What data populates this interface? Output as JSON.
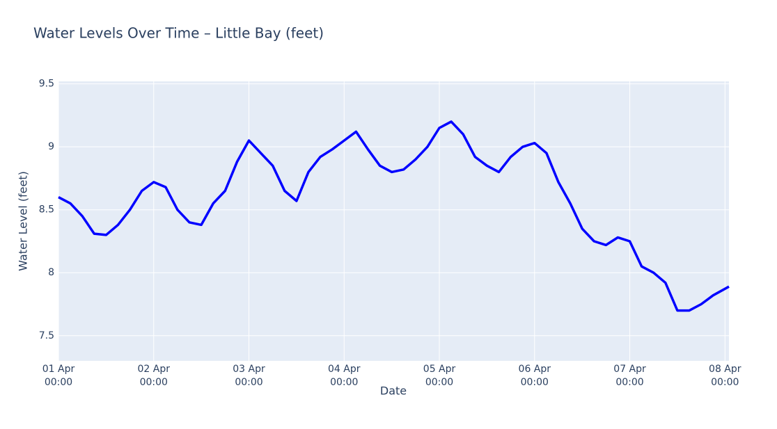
{
  "chart_data": {
    "type": "line",
    "title": "Water Levels Over Time – Little Bay (feet)",
    "x_label": "Date",
    "y_label": "Water Level (feet)",
    "x": [
      "01 Apr 00:00",
      "01 Apr 03:00",
      "01 Apr 06:00",
      "01 Apr 09:00",
      "01 Apr 12:00",
      "01 Apr 15:00",
      "01 Apr 18:00",
      "01 Apr 21:00",
      "02 Apr 00:00",
      "02 Apr 03:00",
      "02 Apr 06:00",
      "02 Apr 09:00",
      "02 Apr 12:00",
      "02 Apr 15:00",
      "02 Apr 18:00",
      "02 Apr 21:00",
      "03 Apr 00:00",
      "03 Apr 03:00",
      "03 Apr 06:00",
      "03 Apr 09:00",
      "03 Apr 12:00",
      "03 Apr 15:00",
      "03 Apr 18:00",
      "03 Apr 21:00",
      "04 Apr 00:00",
      "04 Apr 03:00",
      "04 Apr 06:00",
      "04 Apr 09:00",
      "04 Apr 12:00",
      "04 Apr 15:00",
      "04 Apr 18:00",
      "04 Apr 21:00",
      "05 Apr 00:00",
      "05 Apr 03:00",
      "05 Apr 06:00",
      "05 Apr 09:00",
      "05 Apr 12:00",
      "05 Apr 15:00",
      "05 Apr 18:00",
      "05 Apr 21:00",
      "06 Apr 00:00",
      "06 Apr 03:00",
      "06 Apr 06:00",
      "06 Apr 09:00",
      "06 Apr 12:00",
      "06 Apr 15:00",
      "06 Apr 18:00",
      "06 Apr 21:00",
      "07 Apr 00:00",
      "07 Apr 03:00",
      "07 Apr 06:00",
      "07 Apr 09:00",
      "07 Apr 12:00",
      "07 Apr 15:00",
      "07 Apr 18:00",
      "07 Apr 21:00",
      "08 Apr 01:00"
    ],
    "series": [
      {
        "name": "Water Level",
        "color": "#0000ff",
        "values": [
          8.6,
          8.55,
          8.45,
          8.31,
          8.3,
          8.38,
          8.5,
          8.65,
          8.72,
          8.68,
          8.5,
          8.4,
          8.38,
          8.55,
          8.65,
          8.88,
          9.05,
          8.95,
          8.85,
          8.65,
          8.57,
          8.8,
          8.92,
          8.98,
          9.05,
          9.12,
          8.98,
          8.85,
          8.8,
          8.82,
          8.9,
          9.0,
          9.15,
          9.2,
          9.1,
          8.92,
          8.85,
          8.8,
          8.92,
          9.0,
          9.03,
          8.95,
          8.72,
          8.55,
          8.35,
          8.25,
          8.22,
          8.28,
          8.25,
          8.05,
          8.0,
          7.92,
          7.7,
          7.7,
          7.75,
          7.82,
          7.89
        ]
      }
    ],
    "xlim": [
      "01 Apr 00:00",
      "08 Apr 01:00"
    ],
    "xticks": [
      {
        "value": "01 Apr 00:00",
        "label": [
          "01 Apr",
          "00:00"
        ]
      },
      {
        "value": "02 Apr 00:00",
        "label": [
          "02 Apr",
          "00:00"
        ]
      },
      {
        "value": "03 Apr 00:00",
        "label": [
          "03 Apr",
          "00:00"
        ]
      },
      {
        "value": "04 Apr 00:00",
        "label": [
          "04 Apr",
          "00:00"
        ]
      },
      {
        "value": "05 Apr 00:00",
        "label": [
          "05 Apr",
          "00:00"
        ]
      },
      {
        "value": "06 Apr 00:00",
        "label": [
          "06 Apr",
          "00:00"
        ]
      },
      {
        "value": "07 Apr 00:00",
        "label": [
          "07 Apr",
          "00:00"
        ]
      },
      {
        "value": "08 Apr 00:00",
        "label": [
          "08 Apr",
          "00:00"
        ]
      }
    ],
    "ylim": [
      7.3,
      9.52
    ],
    "yticks": [
      7.5,
      8,
      8.5,
      9,
      9.5
    ],
    "grid": true
  }
}
